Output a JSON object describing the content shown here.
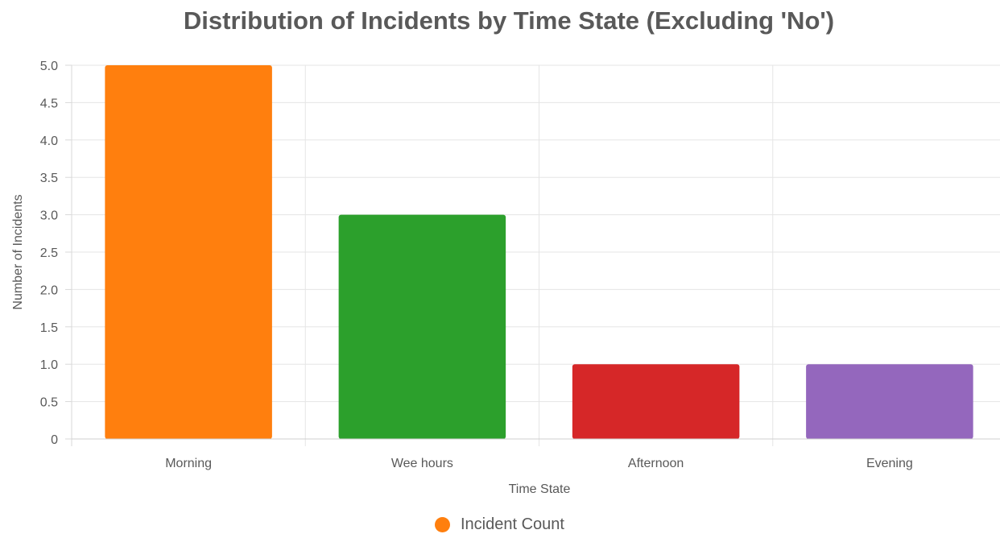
{
  "chart_data": {
    "type": "bar",
    "title": "Distribution of Incidents by Time State (Excluding 'No')",
    "xlabel": "Time State",
    "ylabel": "Number of Incidents",
    "categories": [
      "Morning",
      "Wee hours",
      "Afternoon",
      "Evening"
    ],
    "series": [
      {
        "name": "Incident Count",
        "values": [
          5,
          3,
          1,
          1
        ]
      }
    ],
    "bar_colors": [
      "#ff7f0e",
      "#2ca02c",
      "#d62728",
      "#9467bd"
    ],
    "legend_color": "#ff7f0e",
    "ylim": [
      0,
      5
    ],
    "yticks": [
      "0",
      "0.5",
      "1.0",
      "1.5",
      "2.0",
      "2.5",
      "3.0",
      "3.5",
      "4.0",
      "4.5",
      "5.0"
    ],
    "grid": true,
    "legend_position": "bottom-center"
  }
}
